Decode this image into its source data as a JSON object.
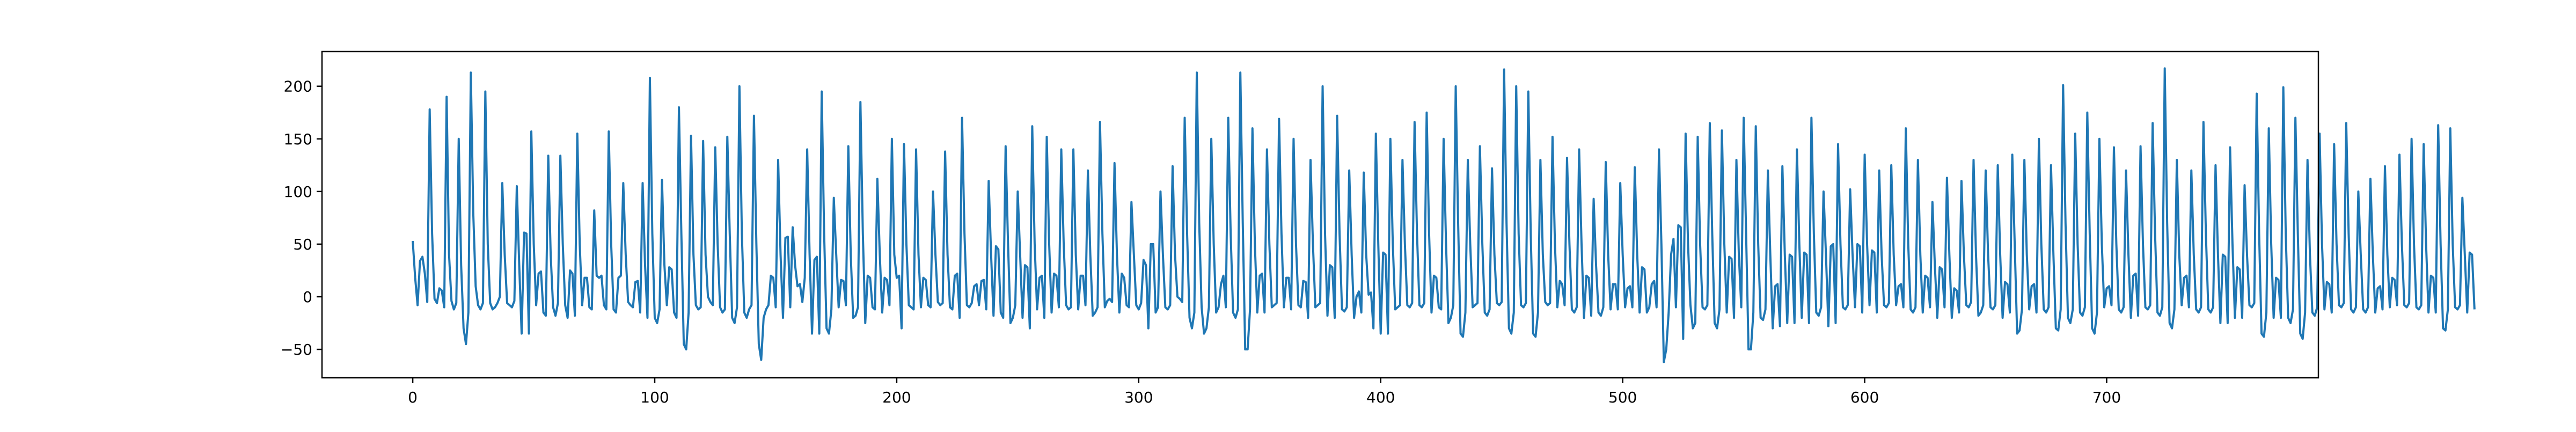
{
  "chart_data": {
    "type": "line",
    "title": "",
    "xlabel": "",
    "ylabel": "",
    "xlim": [
      -37.5,
      787.5
    ],
    "ylim": [
      -77,
      233
    ],
    "x_ticks": [
      0,
      100,
      200,
      300,
      400,
      500,
      600,
      700
    ],
    "y_ticks": [
      -50,
      0,
      50,
      100,
      150,
      200
    ],
    "x_tick_labels": [
      "0",
      "100",
      "200",
      "300",
      "400",
      "500",
      "600",
      "700"
    ],
    "y_tick_labels": [
      "−50",
      "0",
      "50",
      "100",
      "150",
      "200"
    ],
    "grid": false,
    "legend": "none",
    "line_color": "#1f77b4",
    "series": [
      {
        "x_start": 0,
        "x_step": 1,
        "values": [
          53,
          18,
          -8,
          34,
          38,
          22,
          -5,
          178,
          60,
          -2,
          -6,
          8,
          6,
          -10,
          190,
          40,
          -4,
          -12,
          -6,
          150,
          30,
          -30,
          -45,
          -15,
          213,
          80,
          10,
          -8,
          -12,
          -6,
          195,
          50,
          -6,
          -12,
          -10,
          -6,
          0,
          108,
          40,
          -6,
          -8,
          -10,
          -4,
          105,
          30,
          -35,
          61,
          60,
          -35,
          157,
          50,
          -8,
          22,
          24,
          -15,
          -18,
          134,
          40,
          -10,
          -18,
          -6,
          134,
          50,
          -8,
          -20,
          25,
          22,
          -18,
          155,
          50,
          -8,
          18,
          18,
          -10,
          -12,
          82,
          20,
          18,
          20,
          -8,
          -12,
          157,
          50,
          -12,
          -15,
          18,
          20,
          108,
          40,
          -5,
          -8,
          -10,
          14,
          15,
          -15,
          108,
          30,
          -20,
          208,
          60,
          -20,
          -25,
          -12,
          111,
          30,
          -8,
          28,
          26,
          -15,
          -20,
          180,
          60,
          -45,
          -50,
          -15,
          153,
          40,
          -8,
          -12,
          -10,
          148,
          40,
          0,
          -5,
          -8,
          142,
          50,
          -10,
          -15,
          -12,
          152,
          60,
          -20,
          -25,
          -10,
          200,
          60,
          -15,
          -20,
          -12,
          -8,
          172,
          50,
          -45,
          -60,
          -20,
          -12,
          -8,
          20,
          18,
          -10,
          130,
          40,
          -20,
          56,
          57,
          -10,
          66,
          30,
          10,
          12,
          -5,
          18,
          140,
          40,
          -35,
          35,
          38,
          -35,
          195,
          60,
          -30,
          -35,
          -12,
          94,
          40,
          -10,
          16,
          15,
          -8,
          143,
          40,
          -20,
          -18,
          -10,
          185,
          60,
          -25,
          20,
          18,
          -10,
          -12,
          112,
          40,
          -15,
          18,
          16,
          -8,
          150,
          40,
          18,
          20,
          -30,
          145,
          50,
          -8,
          -10,
          -12,
          140,
          40,
          -10,
          18,
          16,
          -8,
          -10,
          100,
          40,
          -5,
          -8,
          -6,
          138,
          40,
          -10,
          -12,
          20,
          22,
          -20,
          170,
          60,
          -8,
          -10,
          -6,
          10,
          12,
          -8,
          15,
          16,
          -12,
          110,
          40,
          -18,
          48,
          45,
          -15,
          -20,
          143,
          50,
          -25,
          -20,
          -8,
          100,
          40,
          -20,
          30,
          28,
          -30,
          162,
          50,
          -12,
          18,
          20,
          -20,
          152,
          50,
          -15,
          22,
          20,
          -10,
          140,
          50,
          -8,
          -12,
          -10,
          140,
          40,
          -12,
          20,
          20,
          -8,
          120,
          40,
          -18,
          -15,
          -10,
          166,
          60,
          -10,
          -4,
          -2,
          -5,
          127,
          40,
          -15,
          22,
          18,
          -8,
          -10,
          90,
          40,
          -8,
          -12,
          -6,
          35,
          30,
          -30,
          50,
          50,
          -15,
          -10,
          100,
          40,
          -10,
          -12,
          -8,
          124,
          40,
          0,
          -2,
          -5,
          170,
          60,
          -20,
          -30,
          -15,
          213,
          70,
          -10,
          -35,
          -30,
          -10,
          150,
          50,
          -15,
          -10,
          12,
          20,
          -10,
          170,
          60,
          -15,
          -20,
          -12,
          213,
          70,
          -50,
          -50,
          -12,
          160,
          50,
          -15,
          20,
          22,
          -15,
          140,
          50,
          -10,
          -8,
          -6,
          169,
          60,
          -10,
          18,
          18,
          -12,
          150,
          50,
          -8,
          -10,
          15,
          14,
          -20,
          130,
          50,
          -10,
          -8,
          -6,
          200,
          60,
          -18,
          30,
          28,
          -20,
          172,
          60,
          -12,
          -14,
          -10,
          120,
          40,
          -20,
          0,
          5,
          -15,
          118,
          40,
          2,
          4,
          -30,
          155,
          50,
          -35,
          42,
          40,
          -35,
          150,
          50,
          -12,
          -10,
          -8,
          130,
          50,
          -8,
          -10,
          -6,
          166,
          60,
          -8,
          -10,
          -6,
          175,
          60,
          -15,
          20,
          18,
          -10,
          -12,
          150,
          50,
          -25,
          -20,
          -8,
          200,
          70,
          -35,
          -38,
          -15,
          130,
          50,
          -10,
          -8,
          -6,
          143,
          50,
          -15,
          -18,
          -12,
          122,
          40,
          -6,
          -8,
          -5,
          216,
          70,
          -30,
          -35,
          -15,
          200,
          60,
          -8,
          -10,
          -6,
          195,
          60,
          -35,
          -38,
          -15,
          130,
          40,
          -5,
          -8,
          -6,
          152,
          50,
          -10,
          15,
          12,
          -8,
          132,
          50,
          -12,
          -15,
          -10,
          140,
          50,
          -20,
          20,
          18,
          -18,
          93,
          30,
          -15,
          -18,
          -10,
          128,
          40,
          -12,
          12,
          12,
          -12,
          108,
          40,
          -10,
          8,
          10,
          -10,
          123,
          40,
          -15,
          28,
          26,
          -15,
          -10,
          12,
          15,
          -10,
          140,
          50,
          -62,
          -50,
          -15,
          40,
          55,
          -10,
          68,
          66,
          -40,
          155,
          50,
          -8,
          -30,
          -25,
          152,
          50,
          -10,
          -12,
          -8,
          165,
          60,
          -25,
          -30,
          -12,
          158,
          50,
          -15,
          38,
          36,
          -20,
          130,
          40,
          -10,
          170,
          60,
          -50,
          -50,
          -15,
          162,
          50,
          -20,
          -22,
          -12,
          120,
          40,
          -30,
          10,
          12,
          -28,
          124,
          40,
          -25,
          40,
          38,
          -25,
          140,
          50,
          -20,
          42,
          40,
          -25,
          170,
          60,
          -15,
          -18,
          -10,
          100,
          40,
          -28,
          48,
          50,
          -25,
          145,
          50,
          -10,
          -12,
          -8,
          102,
          40,
          -10,
          50,
          48,
          -15,
          135,
          50,
          -8,
          44,
          42,
          -15,
          120,
          40,
          -8,
          -10,
          -6,
          125,
          40,
          -8,
          10,
          12,
          -10,
          160,
          50,
          -12,
          -15,
          -10,
          130,
          40,
          -15,
          20,
          18,
          -10,
          90,
          30,
          -20,
          28,
          26,
          -10,
          113,
          40,
          -20,
          8,
          6,
          -15,
          110,
          40,
          -8,
          -10,
          -5,
          130,
          40,
          -18,
          -15,
          -8,
          120,
          40,
          -10,
          -12,
          -8,
          125,
          40,
          -20,
          14,
          12,
          -15,
          135,
          50,
          -35,
          -32,
          -12,
          130,
          40,
          -12,
          10,
          12,
          -15,
          150,
          50,
          -12,
          -15,
          -10,
          125,
          40,
          -30,
          -32,
          -12,
          201,
          70,
          -20,
          -25,
          -12,
          155,
          50,
          -15,
          -18,
          -10,
          175,
          60,
          -30,
          -35,
          -15,
          150,
          50,
          -10,
          8,
          10,
          -8,
          142,
          50,
          -12,
          -15,
          -10,
          120,
          40,
          -20,
          20,
          22,
          -18,
          143,
          50,
          -10,
          -12,
          -8,
          165,
          60,
          -15,
          -18,
          -10,
          217,
          70,
          -25,
          -30,
          -12,
          130,
          40,
          -8,
          18,
          20,
          -10,
          120,
          40,
          -12,
          -15,
          -10,
          166,
          60,
          -12,
          -15,
          -10,
          125,
          40,
          -25,
          40,
          38,
          -25,
          142,
          50,
          -20,
          28,
          26,
          -20,
          106,
          40,
          -8,
          -10,
          -6,
          193,
          60,
          -35,
          -38,
          -15,
          160,
          50,
          -20,
          18,
          16,
          -20,
          199,
          60,
          -20,
          -25,
          -12,
          170,
          60,
          -35,
          -40,
          -15,
          130,
          40,
          -15,
          -18,
          -10,
          155,
          50,
          -12,
          14,
          12,
          -15,
          145,
          50,
          -8,
          -10,
          -6,
          165,
          60,
          -12,
          -15,
          -10,
          100,
          40,
          -12,
          -15,
          -10,
          112,
          40,
          -15,
          8,
          10,
          -12,
          124,
          40,
          -10,
          18,
          16,
          -8,
          135,
          50,
          -8,
          -10,
          -6,
          150,
          50,
          -10,
          -12,
          -8,
          145,
          50,
          -15,
          20,
          18,
          -15,
          163,
          50,
          -30,
          -32,
          -12,
          160,
          50,
          -10,
          -12,
          -8,
          94,
          40,
          -15,
          42,
          40,
          -12
        ]
      }
    ]
  }
}
